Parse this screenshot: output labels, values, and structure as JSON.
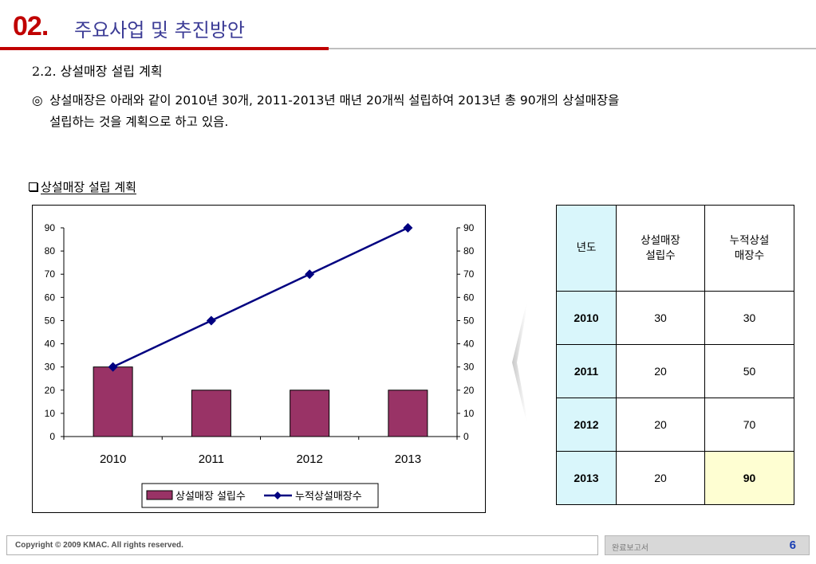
{
  "header": {
    "number": "02.",
    "title": "주요사업 및 추진방안"
  },
  "section": {
    "subtitle": "2.2. 상설매장 설립 계획",
    "bullet_mark": "◎",
    "line1": "상설매장은 아래와 같이 2010년 30개, 2011-2013년 매년 20개씩 설립하여 2013년 총 90개의 상설매장을",
    "line2": "설립하는 것을 계획으로 하고 있음.",
    "chart_label": "상설매장 설립 계획"
  },
  "chart_data": {
    "type": "bar",
    "categories": [
      "2010",
      "2011",
      "2012",
      "2013"
    ],
    "series": [
      {
        "name": "상설매장 설립수",
        "type": "bar",
        "values": [
          30,
          20,
          20,
          20
        ],
        "color": "#993366"
      },
      {
        "name": "누적상설매장수",
        "type": "line",
        "values": [
          30,
          50,
          70,
          90
        ],
        "color": "#000080"
      }
    ],
    "ylim": [
      0,
      90
    ],
    "yticks": [
      0,
      10,
      20,
      30,
      40,
      50,
      60,
      70,
      80,
      90
    ],
    "y2lim": [
      0,
      90
    ],
    "y2ticks": [
      0,
      10,
      20,
      30,
      40,
      50,
      60,
      70,
      80,
      90
    ],
    "legend_position": "bottom",
    "grid": false,
    "title": "",
    "xlabel": "",
    "ylabel": ""
  },
  "table": {
    "headers": [
      "년도",
      "상설매장\n설립수",
      "누적상설\n매장수"
    ],
    "rows": [
      [
        "2010",
        "30",
        "30"
      ],
      [
        "2011",
        "20",
        "50"
      ],
      [
        "2012",
        "20",
        "70"
      ],
      [
        "2013",
        "20",
        "90"
      ]
    ],
    "year_col_color": "#d9f6fb",
    "highlight_color": "#fefed2"
  },
  "footer": {
    "copyright": "Copyright © 2009 KMAC. All rights reserved.",
    "doc_label": "완료보고서",
    "page": "6"
  }
}
